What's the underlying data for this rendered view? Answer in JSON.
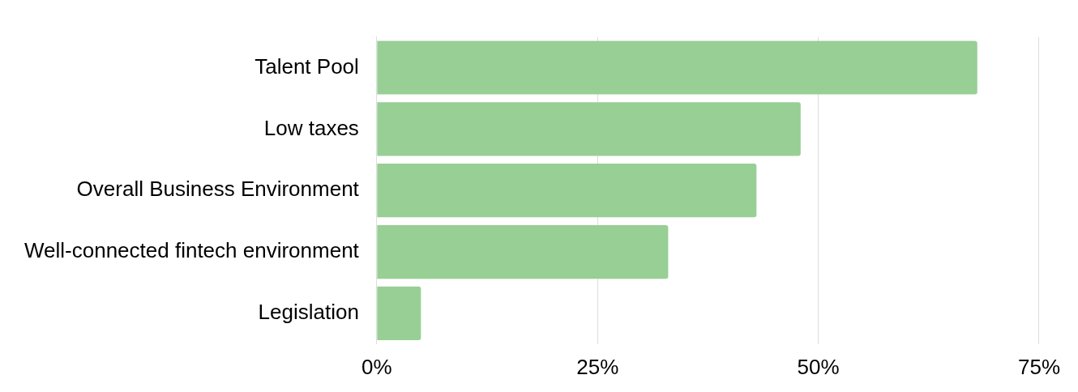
{
  "chart_data": {
    "type": "bar",
    "orientation": "horizontal",
    "categories": [
      "Talent Pool",
      "Low taxes",
      "Overall Business Environment",
      "Well-connected fintech environment",
      "Legislation"
    ],
    "values": [
      68,
      48,
      43,
      33,
      5
    ],
    "color": "#97cf94",
    "xlim": [
      0,
      75
    ],
    "xticks": [
      {
        "value": 0,
        "label": "0%"
      },
      {
        "value": 25,
        "label": "25%"
      },
      {
        "value": 50,
        "label": "50%"
      },
      {
        "value": 75,
        "label": "75%"
      }
    ],
    "grid": "x",
    "legend": false
  }
}
